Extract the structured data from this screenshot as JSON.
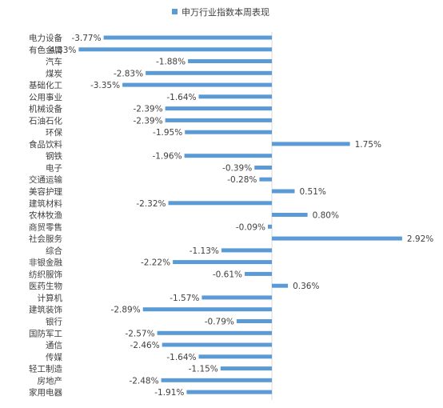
{
  "chart_data": {
    "type": "bar",
    "orientation": "horizontal",
    "legend": {
      "label": "申万行业指数本周表现",
      "position": "top"
    },
    "color": "#5B9BD5",
    "grid": false,
    "xlim": [
      -4.6,
      3.2
    ],
    "categories": [
      "电力设备",
      "有色金属",
      "汽车",
      "煤炭",
      "基础化工",
      "公用事业",
      "机械设备",
      "石油石化",
      "环保",
      "食品饮料",
      "钢铁",
      "电子",
      "交通运输",
      "美容护理",
      "建筑材料",
      "农林牧渔",
      "商贸零售",
      "社会服务",
      "综合",
      "非银金融",
      "纺织服饰",
      "医药生物",
      "计算机",
      "建筑装饰",
      "银行",
      "国防军工",
      "通信",
      "传媒",
      "轻工制造",
      "房地产",
      "家用电器"
    ],
    "values": [
      -3.77,
      -4.33,
      -1.88,
      -2.83,
      -3.35,
      -1.64,
      -2.39,
      -2.39,
      -1.95,
      1.75,
      -1.96,
      -0.39,
      -0.28,
      0.51,
      -2.32,
      0.8,
      -0.09,
      2.92,
      -1.13,
      -2.22,
      -0.61,
      0.36,
      -1.57,
      -2.89,
      -0.79,
      -2.57,
      -2.46,
      -1.64,
      -1.15,
      -2.48,
      -1.91
    ],
    "value_labels": [
      "-3.77%",
      "-4.33%",
      "-1.88%",
      "-2.83%",
      "-3.35%",
      "-1.64%",
      "-2.39%",
      "-2.39%",
      "-1.95%",
      "1.75%",
      "-1.96%",
      "-0.39%",
      "-0.28%",
      "0.51%",
      "-2.32%",
      "0.80%",
      "-0.09%",
      "2.92%",
      "-1.13%",
      "-2.22%",
      "-0.61%",
      "0.36%",
      "-1.57%",
      "-2.89%",
      "-0.79%",
      "-2.57%",
      "-2.46%",
      "-1.64%",
      "-1.15%",
      "-2.48%",
      "-1.91%"
    ]
  }
}
